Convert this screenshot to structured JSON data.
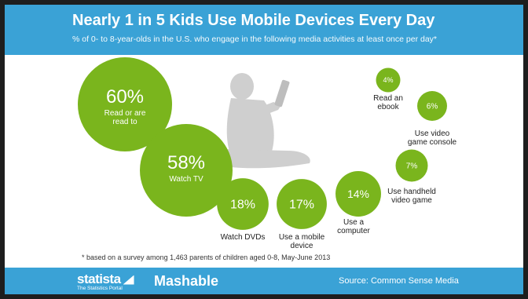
{
  "header": {
    "title": "Nearly 1 in 5 Kids Use Mobile Devices Every Day",
    "subtitle": "% of 0- to 8-year-olds in the U.S. who engage in the following media activities at least once per day*"
  },
  "footnote": "* based on a survey among 1,463 parents of children aged 0-8, May-June 2013",
  "footer": {
    "brand": "statista",
    "brand_tagline": "The Statistics Portal",
    "partner": "Mashable",
    "source": "Source: Common Sense Media"
  },
  "colors": {
    "bubble": "#7ab51d",
    "band": "#3aa2d6",
    "text": "#222222"
  },
  "chart_data": {
    "type": "bubble",
    "unit": "%",
    "categories": [
      "Read or are read to",
      "Watch TV",
      "Watch DVDs",
      "Use a mobile device",
      "Use a computer",
      "Use handheld video game",
      "Use video game console",
      "Read an ebook"
    ],
    "values": [
      60,
      58,
      18,
      17,
      14,
      7,
      6,
      4
    ],
    "labels": [
      "60%",
      "58%",
      "18%",
      "17%",
      "14%",
      "7%",
      "6%",
      "4%"
    ]
  }
}
